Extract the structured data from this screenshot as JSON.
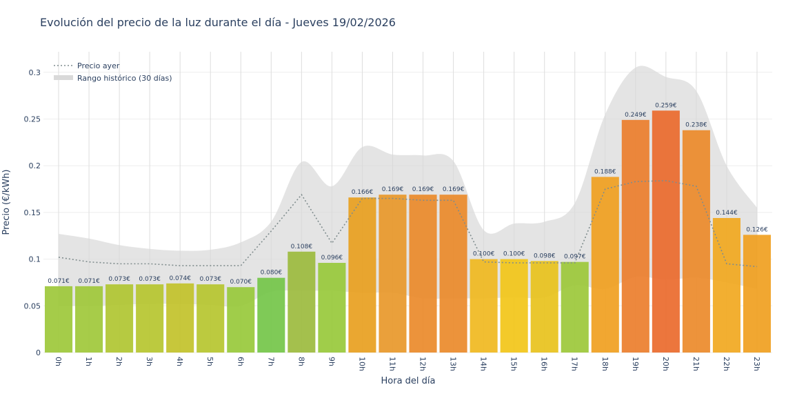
{
  "chart_data": {
    "type": "bar",
    "title": "Evolución del precio de la luz durante el día - Jueves 19/02/2026",
    "x_label": "Hora del día",
    "y_label": "Precio (€/kWh)",
    "categories": [
      "0h",
      "1h",
      "2h",
      "3h",
      "4h",
      "5h",
      "6h",
      "7h",
      "8h",
      "9h",
      "10h",
      "11h",
      "12h",
      "13h",
      "14h",
      "15h",
      "16h",
      "17h",
      "18h",
      "19h",
      "20h",
      "21h",
      "22h",
      "23h"
    ],
    "values": [
      0.071,
      0.071,
      0.073,
      0.073,
      0.074,
      0.073,
      0.07,
      0.08,
      0.108,
      0.096,
      0.166,
      0.169,
      0.169,
      0.169,
      0.1,
      0.1,
      0.098,
      0.097,
      0.188,
      0.249,
      0.259,
      0.238,
      0.144,
      0.126
    ],
    "value_labels": [
      "0.071€",
      "0.071€",
      "0.073€",
      "0.073€",
      "0.074€",
      "0.073€",
      "0.070€",
      "0.080€",
      "0.108€",
      "0.096€",
      "0.166€",
      "0.169€",
      "0.169€",
      "0.169€",
      "0.100€",
      "0.100€",
      "0.098€",
      "0.097€",
      "0.188€",
      "0.249€",
      "0.259€",
      "0.238€",
      "0.144€",
      "0.126€"
    ],
    "colors": [
      "#9dc83a",
      "#a0c83a",
      "#b0c631",
      "#b6c52f",
      "#c2c22a",
      "#b6c52f",
      "#98c93b",
      "#74c549",
      "#9cbb3e",
      "#98c93b",
      "#e8a020",
      "#e8982a",
      "#ea8a2a",
      "#ea8a2a",
      "#f0b820",
      "#f2c518",
      "#e8c21c",
      "#9cc83a",
      "#f0a020",
      "#eb7e2c",
      "#ea6a2d",
      "#ec8a2a",
      "#f1a820",
      "#f0a020"
    ],
    "line": {
      "name": "Precio ayer",
      "color": "#7f8c8d",
      "values": [
        0.102,
        0.097,
        0.095,
        0.095,
        0.093,
        0.093,
        0.093,
        0.13,
        0.169,
        0.117,
        0.165,
        0.165,
        0.163,
        0.163,
        0.097,
        0.096,
        0.096,
        0.096,
        0.175,
        0.183,
        0.184,
        0.178,
        0.095,
        0.092
      ]
    },
    "range": {
      "name": "Rango histórico (30 días)",
      "color": "#d9d9d9",
      "upper": [
        0.127,
        0.122,
        0.115,
        0.111,
        0.109,
        0.11,
        0.118,
        0.14,
        0.204,
        0.178,
        0.22,
        0.212,
        0.211,
        0.205,
        0.131,
        0.138,
        0.14,
        0.16,
        0.255,
        0.305,
        0.295,
        0.28,
        0.2,
        0.155
      ],
      "lower": [
        0.05,
        0.05,
        0.051,
        0.052,
        0.052,
        0.051,
        0.05,
        0.065,
        0.066,
        0.066,
        0.064,
        0.064,
        0.058,
        0.058,
        0.058,
        0.059,
        0.059,
        0.072,
        0.068,
        0.081,
        0.078,
        0.08,
        0.075,
        0.068
      ]
    },
    "ylim": [
      0,
      0.322
    ],
    "yticks": [
      0,
      0.05,
      0.1,
      0.15,
      0.2,
      0.25,
      0.3
    ],
    "grid": true,
    "legend": "top-left"
  }
}
